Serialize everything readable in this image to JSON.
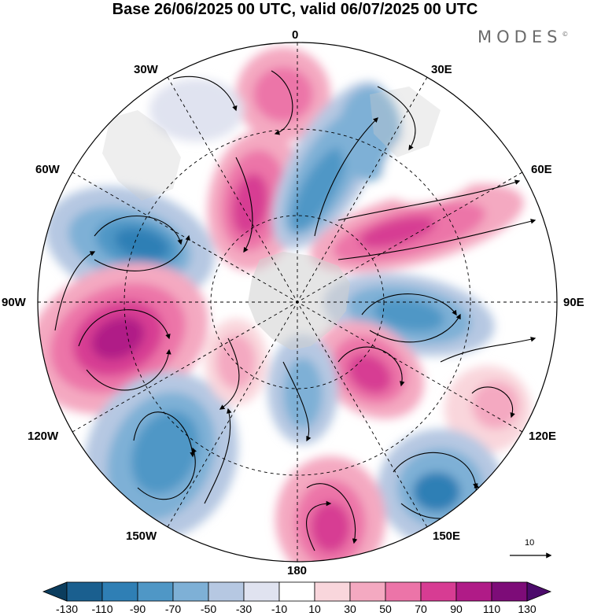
{
  "title": "Base 26/06/2025 00 UTC, valid 06/07/2025 00 UTC",
  "brand": "MODES",
  "brand_mark": "©",
  "longitude_labels": {
    "top": "0",
    "top_left": "30W",
    "top_right": "30E",
    "upper_left": "60W",
    "upper_right": "60E",
    "left": "90W",
    "right": "90E",
    "lower_left": "120W",
    "lower_right": "120E",
    "bottom_left": "150W",
    "bottom_right": "150E",
    "bottom": "180"
  },
  "vector_scale": "10",
  "colorbar": {
    "ticks": [
      "-130",
      "-110",
      "-90",
      "-70",
      "-50",
      "-30",
      "-10",
      "10",
      "30",
      "50",
      "70",
      "90",
      "110",
      "130"
    ],
    "colors": [
      "#0b3d5e",
      "#1a5f8f",
      "#2f7fb5",
      "#4f97c6",
      "#7eb0d6",
      "#b6c8e2",
      "#e0e3f0",
      "#ffffff",
      "#f9d6dc",
      "#f4a9c1",
      "#ec74a8",
      "#d73c93",
      "#b01b87",
      "#7d0c78",
      "#4c0b6b"
    ]
  },
  "colors": {
    "land": "#d8d8d8",
    "ocean_neutral": "#f0f0f4"
  }
}
